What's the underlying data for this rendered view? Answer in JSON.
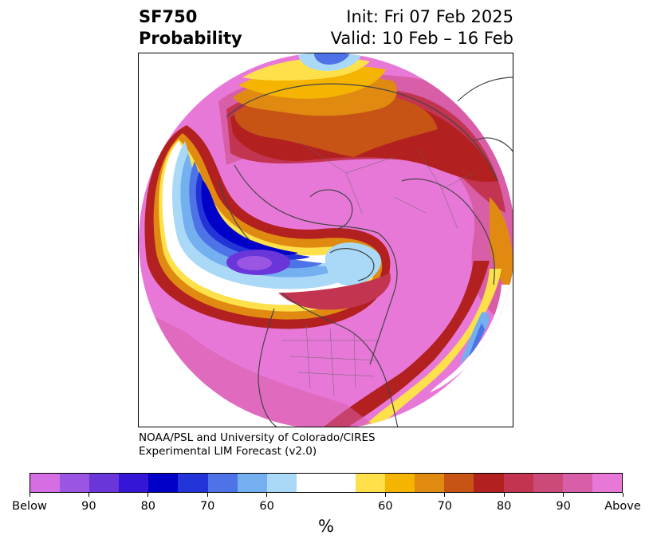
{
  "header": {
    "title_line1": "SF750",
    "title_line2": "Probability",
    "init": "Init: Fri 07 Feb 2025",
    "valid": "Valid: 10 Feb – 16 Feb"
  },
  "credit": {
    "line1": "NOAA/PSL and University of Colorado/CIRES",
    "line2": "Experimental LIM Forecast (v2.0)"
  },
  "colorbar": {
    "colors": [
      "#d56de3",
      "#9b55e3",
      "#6a35d9",
      "#3417d6",
      "#0000c8",
      "#2234d8",
      "#4d73e6",
      "#74afef",
      "#aad9f8",
      "#ffffff",
      "#ffffff",
      "#fde04a",
      "#f4b400",
      "#e08a12",
      "#c75414",
      "#b22020",
      "#c23450",
      "#cc4a7a",
      "#d95ea8",
      "#e878d8"
    ],
    "tick_labels": [
      "Below",
      "90",
      "80",
      "70",
      "60",
      "60",
      "70",
      "80",
      "90",
      "Above"
    ],
    "unit": "%"
  },
  "map": {
    "colors": {
      "above_max": "#e878d8",
      "above_90": "#d95ea8",
      "above_80": "#c23450",
      "above_75": "#b22020",
      "above_70": "#c75414",
      "above_65": "#e08a12",
      "above_60": "#f4b400",
      "above_55": "#fde04a",
      "neutral": "#ffffff",
      "below_55": "#aad9f8",
      "below_60": "#74afef",
      "below_65": "#4d73e6",
      "below_70": "#2234d8",
      "below_80": "#0000c8",
      "below_90": "#6a35d9",
      "below_max": "#9b55e3",
      "coast": "#444444"
    }
  }
}
